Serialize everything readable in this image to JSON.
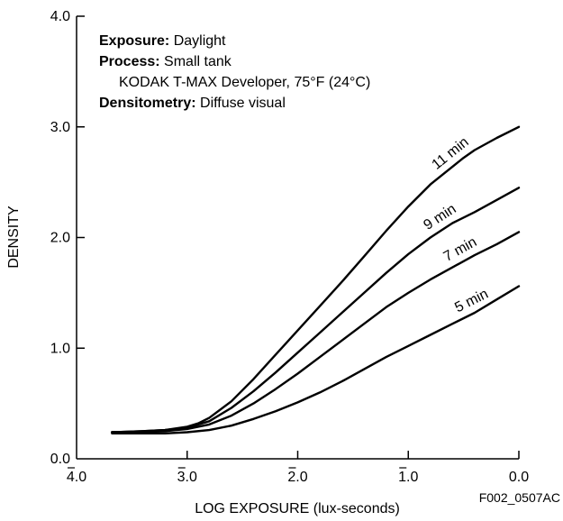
{
  "chart_data": {
    "type": "line",
    "xlabel": "LOG EXPOSURE (lux-seconds)",
    "ylabel": "DENSITY",
    "xlim": [
      -4.0,
      0.0
    ],
    "ylim": [
      0.0,
      4.0
    ],
    "x_tick_labels": [
      "4.0",
      "3.0",
      "2.0",
      "1.0",
      "0.0"
    ],
    "x_tick_values": [
      -4.0,
      -3.0,
      -2.0,
      -1.0,
      0.0
    ],
    "y_tick_labels": [
      "0.0",
      "1.0",
      "2.0",
      "3.0",
      "4.0"
    ],
    "y_tick_values": [
      0.0,
      1.0,
      2.0,
      3.0,
      4.0
    ],
    "grid": false,
    "annotation": {
      "exposure_label": "Exposure:",
      "exposure_value": " Daylight",
      "process_label": "Process:",
      "process_value": " Small tank",
      "developer": "KODAK T-MAX Developer, 75°F (24°C)",
      "densitometry_label": "Densitometry:",
      "densitometry_value": " Diffuse visual"
    },
    "figure_code": "F002_0507AC",
    "series": [
      {
        "name": "11 min",
        "x": [
          -3.68,
          -3.4,
          -3.2,
          -3.0,
          -2.9,
          -2.8,
          -2.6,
          -2.4,
          -2.2,
          -2.0,
          -1.8,
          -1.6,
          -1.4,
          -1.2,
          -1.0,
          -0.8,
          -0.6,
          -0.5,
          -0.4,
          -0.2,
          0.0
        ],
        "y": [
          0.24,
          0.25,
          0.26,
          0.29,
          0.32,
          0.37,
          0.52,
          0.72,
          0.94,
          1.16,
          1.38,
          1.6,
          1.83,
          2.06,
          2.28,
          2.48,
          2.64,
          2.72,
          2.79,
          2.9,
          3.0
        ]
      },
      {
        "name": "9 min",
        "x": [
          -3.68,
          -3.4,
          -3.2,
          -3.0,
          -2.8,
          -2.6,
          -2.4,
          -2.2,
          -2.0,
          -1.8,
          -1.6,
          -1.4,
          -1.2,
          -1.0,
          -0.8,
          -0.6,
          -0.4,
          -0.2,
          0.0
        ],
        "y": [
          0.24,
          0.25,
          0.26,
          0.28,
          0.34,
          0.46,
          0.61,
          0.78,
          0.96,
          1.14,
          1.32,
          1.5,
          1.68,
          1.85,
          2.0,
          2.13,
          2.23,
          2.34,
          2.45
        ]
      },
      {
        "name": "7 min",
        "x": [
          -3.68,
          -3.4,
          -3.2,
          -3.0,
          -2.8,
          -2.6,
          -2.4,
          -2.2,
          -2.0,
          -1.8,
          -1.6,
          -1.4,
          -1.2,
          -1.0,
          -0.8,
          -0.6,
          -0.4,
          -0.2,
          0.0
        ],
        "y": [
          0.24,
          0.24,
          0.25,
          0.27,
          0.31,
          0.39,
          0.5,
          0.63,
          0.77,
          0.92,
          1.07,
          1.22,
          1.37,
          1.5,
          1.62,
          1.73,
          1.84,
          1.94,
          2.05
        ]
      },
      {
        "name": "5 min",
        "x": [
          -3.68,
          -3.4,
          -3.2,
          -3.0,
          -2.8,
          -2.6,
          -2.4,
          -2.2,
          -2.0,
          -1.8,
          -1.6,
          -1.4,
          -1.2,
          -1.0,
          -0.8,
          -0.6,
          -0.4,
          -0.2,
          0.0
        ],
        "y": [
          0.23,
          0.23,
          0.23,
          0.24,
          0.26,
          0.3,
          0.36,
          0.43,
          0.51,
          0.6,
          0.7,
          0.81,
          0.92,
          1.02,
          1.12,
          1.22,
          1.32,
          1.44,
          1.56
        ]
      }
    ]
  }
}
